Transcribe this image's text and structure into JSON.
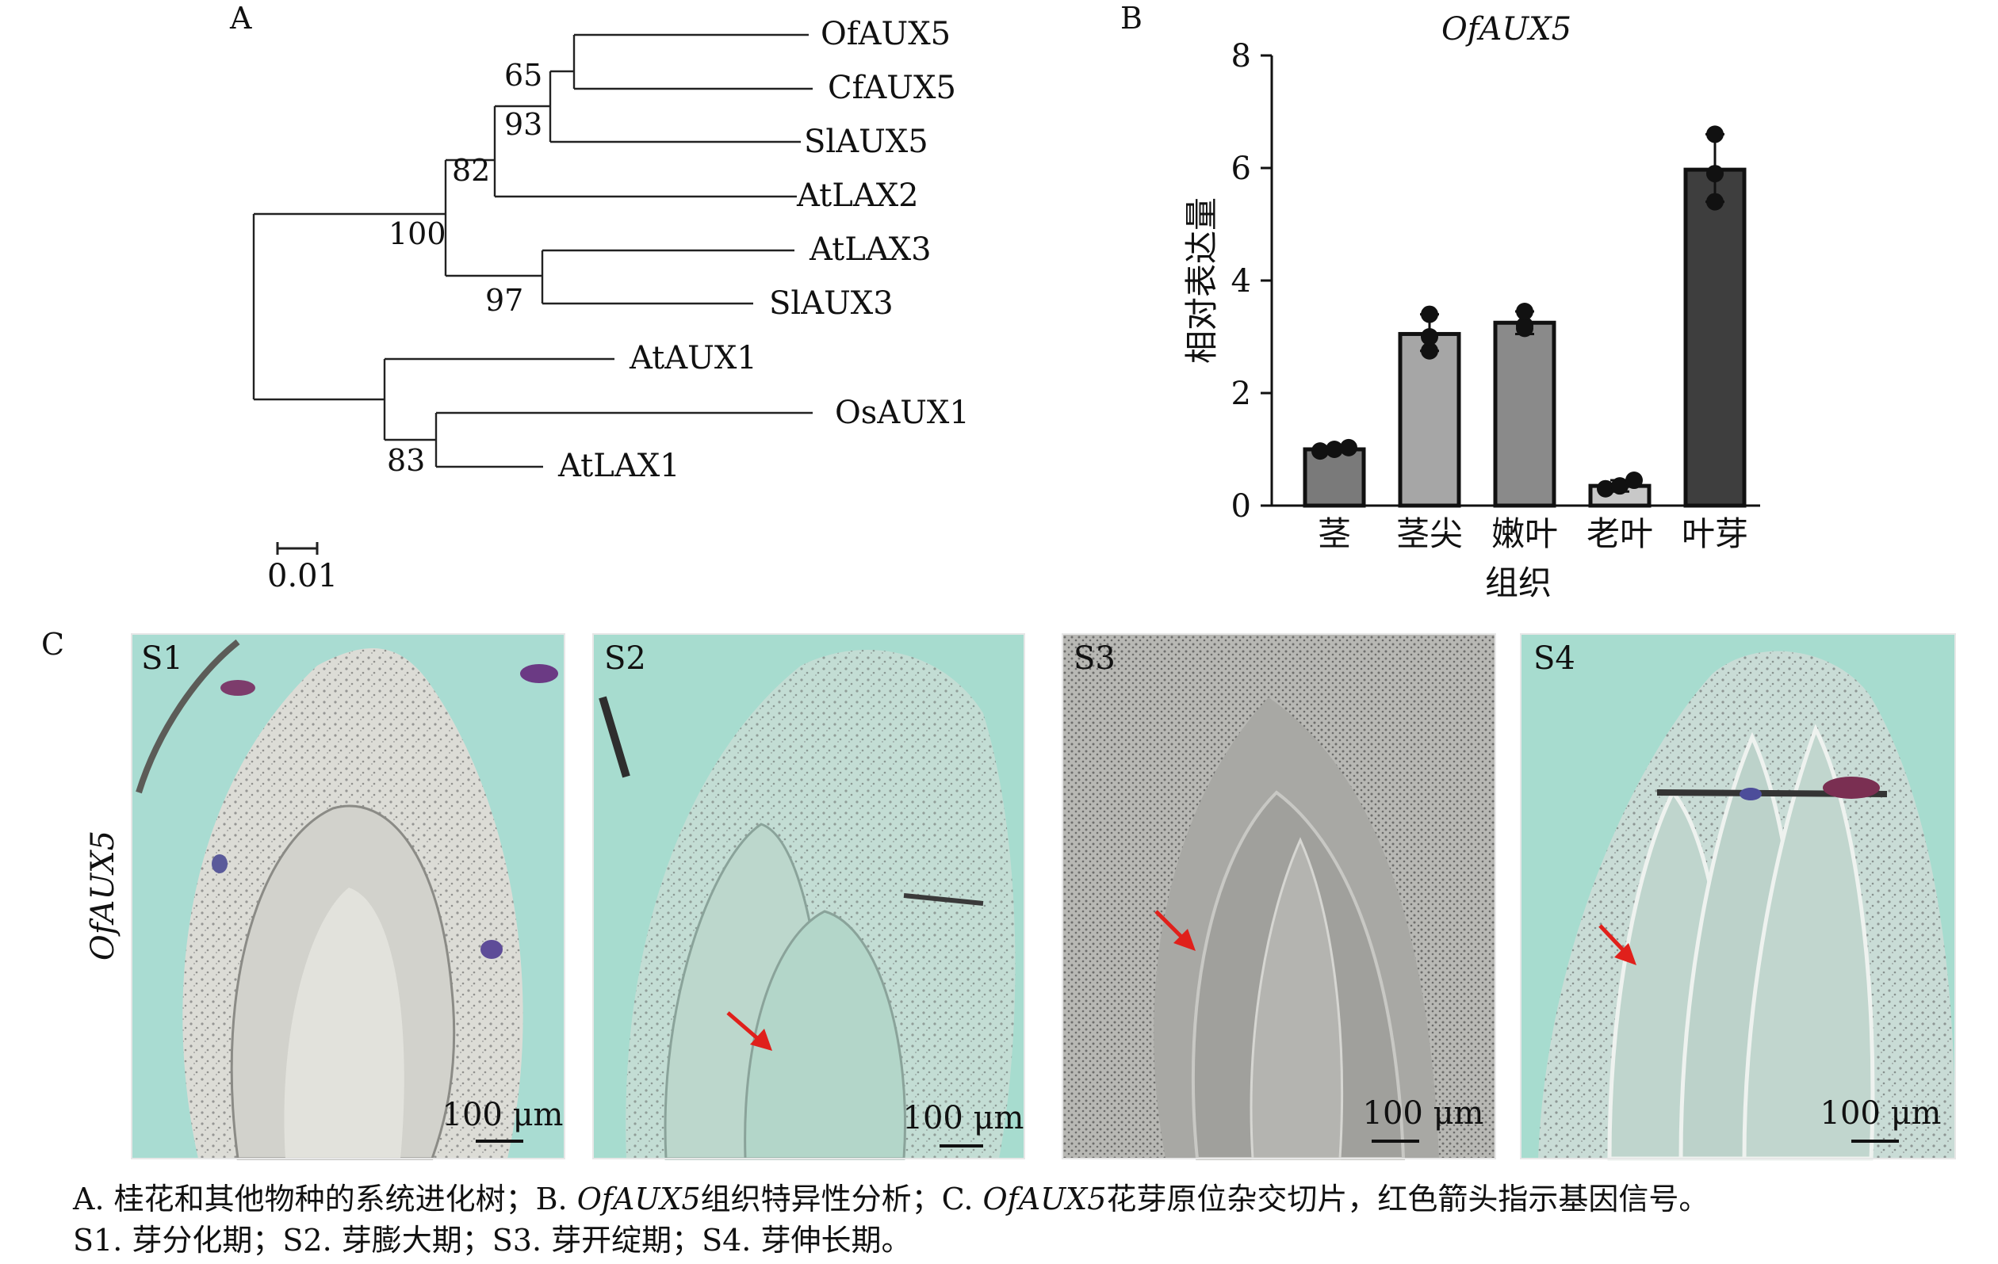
{
  "panels": {
    "a": "A",
    "b": "B",
    "c": "C"
  },
  "tree": {
    "tips": [
      "OfAUX5",
      "CfAUX5",
      "SlAUX5",
      "AtLAX2",
      "AtLAX3",
      "SlAUX3",
      "AtAUX1",
      "OsAUX1",
      "AtLAX1"
    ],
    "bootstrap": [
      "65",
      "93",
      "82",
      "100",
      "97",
      "83"
    ],
    "scale_label": "0.01"
  },
  "chart_data": {
    "type": "bar",
    "title": "OfAUX5",
    "categories": [
      "茎",
      "茎尖",
      "嫩叶",
      "老叶",
      "叶芽"
    ],
    "values": [
      1.0,
      3.05,
      3.25,
      0.35,
      5.97
    ],
    "error_upper": [
      1.05,
      3.4,
      3.45,
      0.45,
      6.6
    ],
    "error_lower": [
      0.95,
      2.75,
      3.05,
      0.25,
      5.4
    ],
    "points": [
      [
        0.97,
        1.0,
        1.03
      ],
      [
        2.75,
        3.0,
        3.4
      ],
      [
        3.15,
        3.2,
        3.45
      ],
      [
        0.3,
        0.35,
        0.45
      ],
      [
        5.4,
        5.9,
        6.6
      ]
    ],
    "ylim": [
      0,
      8
    ],
    "yticks": [
      "0",
      "2",
      "4",
      "6",
      "8"
    ],
    "ylabel": "相对表达量",
    "xlabel": "组织",
    "bar_colors": [
      "#7a7a7a",
      "#a6a6a6",
      "#8a8a8a",
      "#c8c8c8",
      "#3e3e3e"
    ]
  },
  "micrographs": {
    "row_label": "OfAUX5",
    "stages": [
      "S1",
      "S2",
      "S3",
      "S4"
    ],
    "scale_text": "100 μm",
    "arrow_color": "#e0201b"
  },
  "caption": {
    "l1_a": "A. 桂花和其他物种的系统进化树；B. ",
    "l1_b": "OfAUX5",
    "l1_c": "组织特异性分析；C. ",
    "l1_d": "OfAUX5",
    "l1_e": "花芽原位杂交切片，红色箭头指示基因信号。",
    "l2": "S1. 芽分化期；S2. 芽膨大期；S3. 芽开绽期；S4. 芽伸长期。"
  }
}
